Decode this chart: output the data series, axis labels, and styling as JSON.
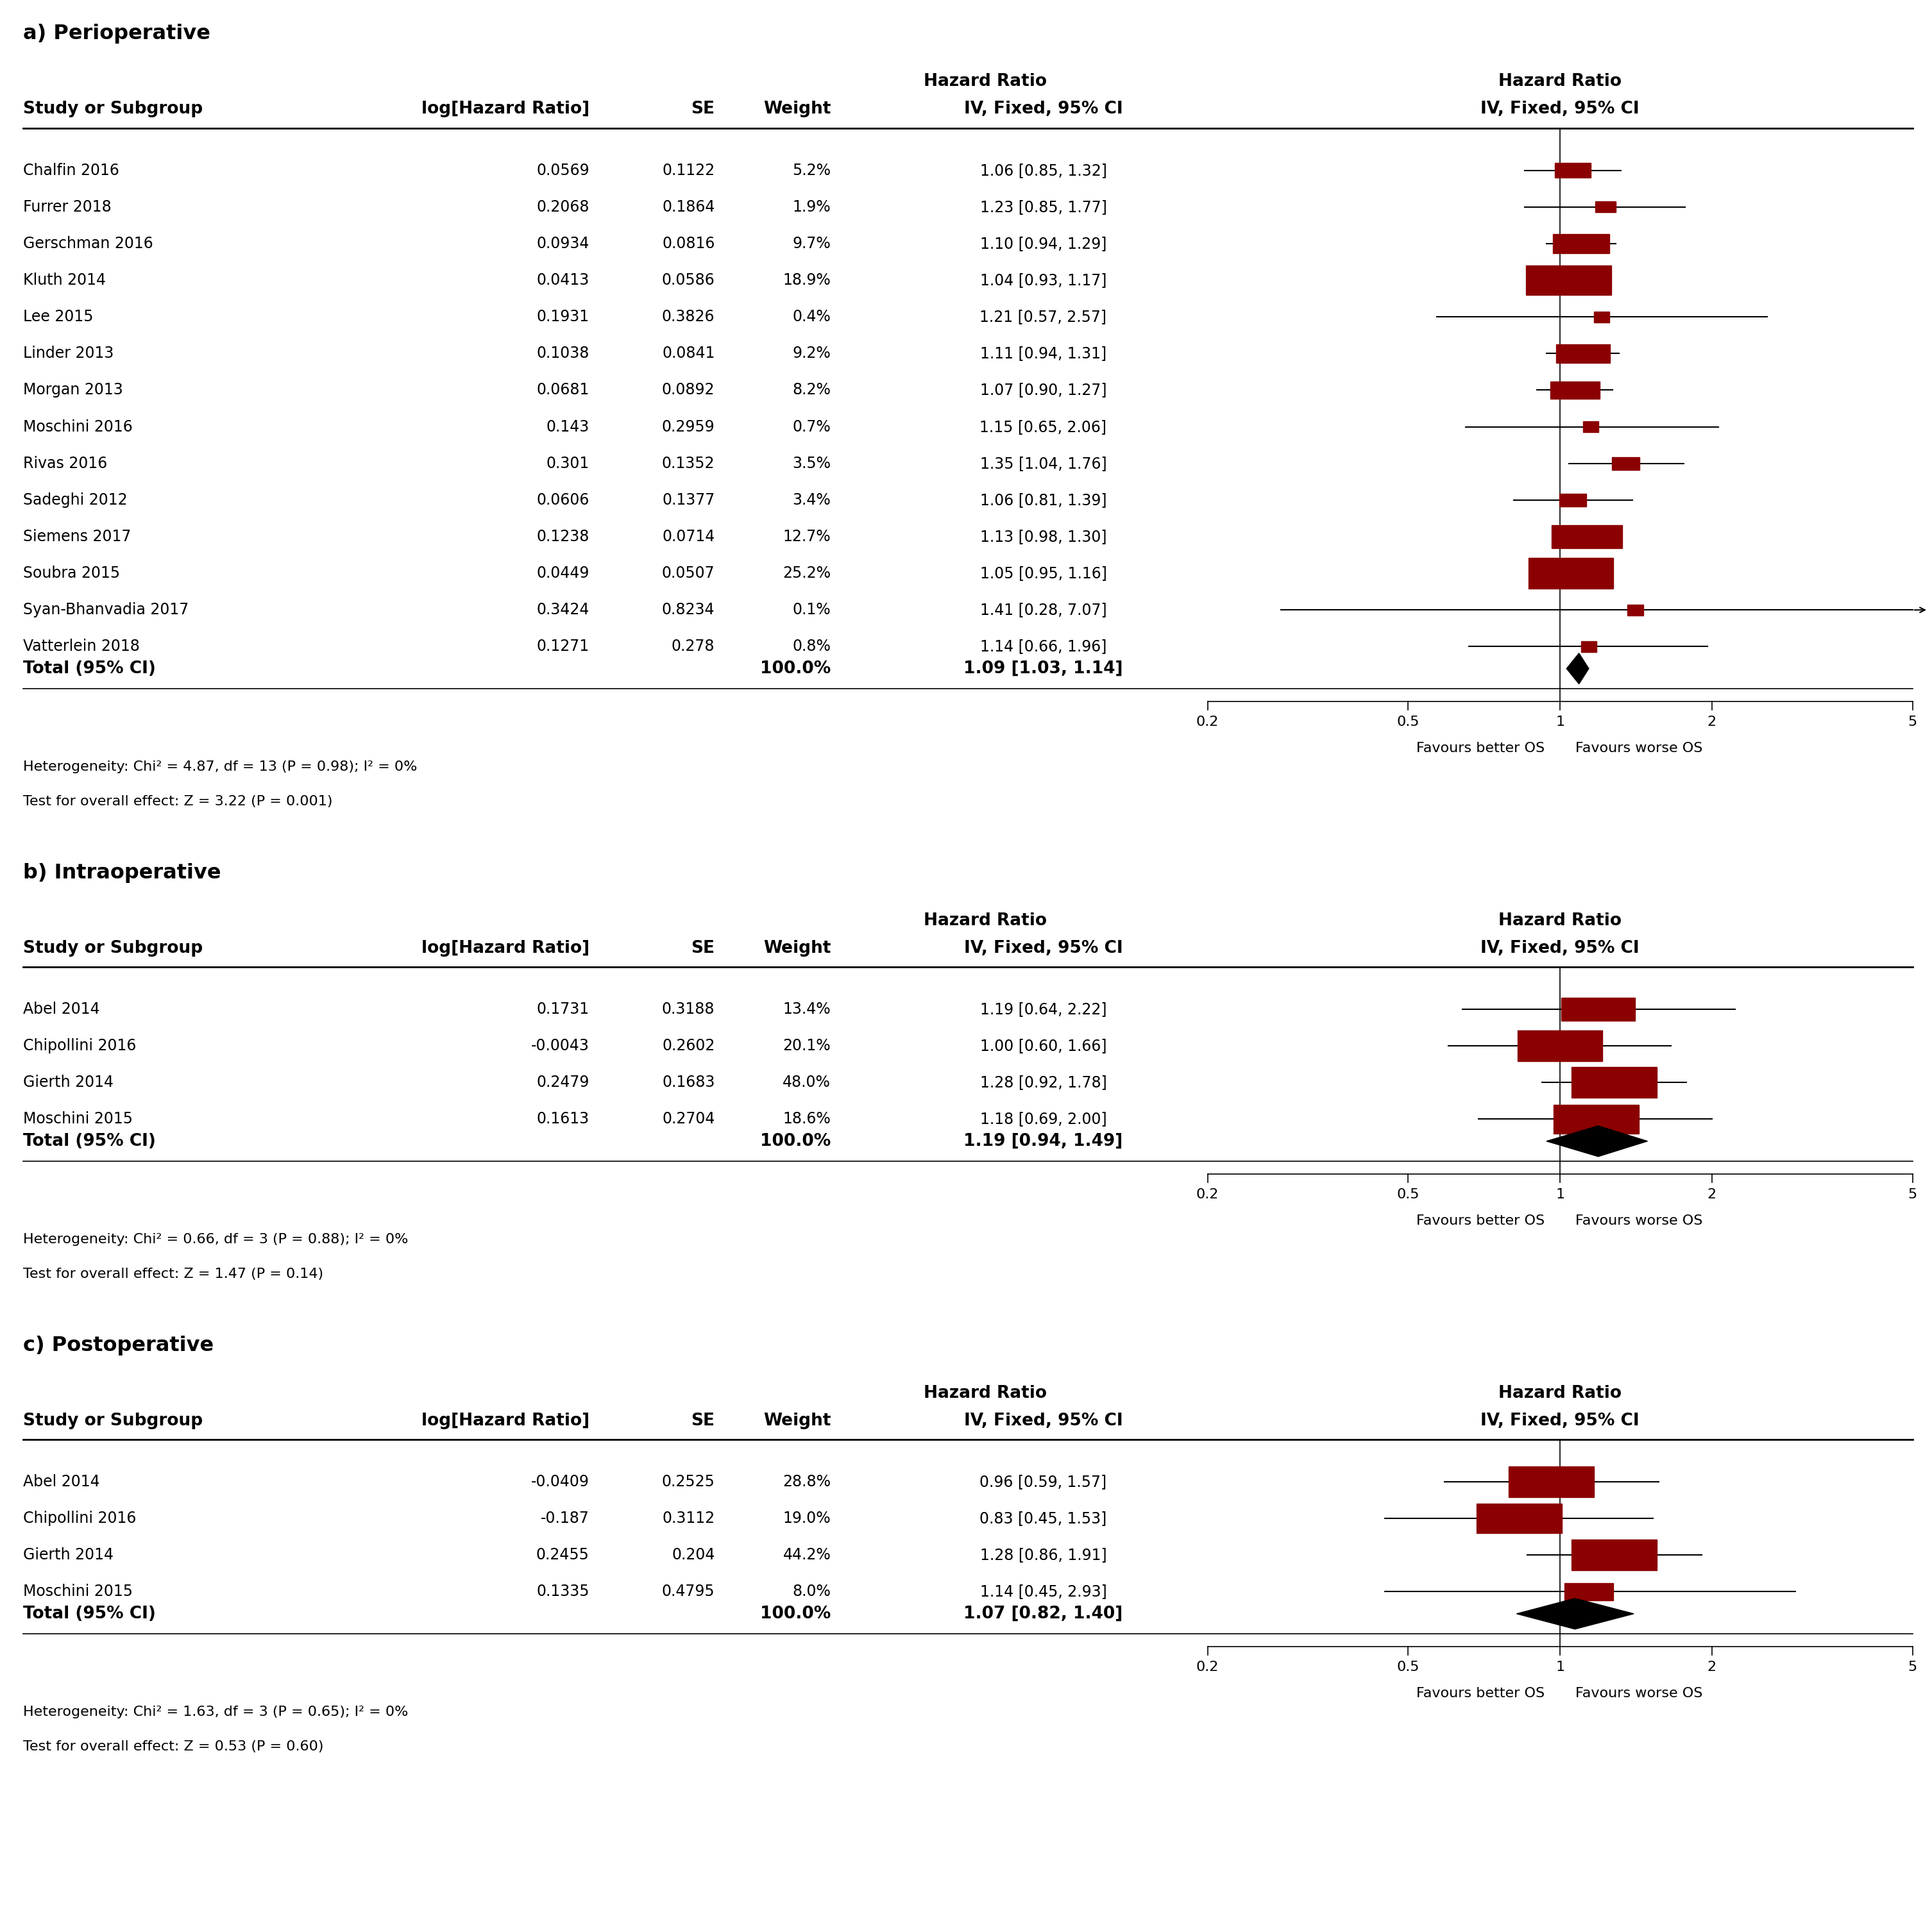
{
  "sections": [
    {
      "label": "a) Perioperative",
      "studies": [
        {
          "name": "Chalfin 2016",
          "log_hr": 0.0569,
          "se": 0.1122,
          "weight": "5.2%",
          "hr_str": "1.06 [0.85, 1.32]",
          "hr": 1.06,
          "lo": 0.85,
          "hi": 1.32
        },
        {
          "name": "Furrer 2018",
          "log_hr": 0.2068,
          "se": 0.1864,
          "weight": "1.9%",
          "hr_str": "1.23 [0.85, 1.77]",
          "hr": 1.23,
          "lo": 0.85,
          "hi": 1.77
        },
        {
          "name": "Gerschman 2016",
          "log_hr": 0.0934,
          "se": 0.0816,
          "weight": "9.7%",
          "hr_str": "1.10 [0.94, 1.29]",
          "hr": 1.1,
          "lo": 0.94,
          "hi": 1.29
        },
        {
          "name": "Kluth 2014",
          "log_hr": 0.0413,
          "se": 0.0586,
          "weight": "18.9%",
          "hr_str": "1.04 [0.93, 1.17]",
          "hr": 1.04,
          "lo": 0.93,
          "hi": 1.17
        },
        {
          "name": "Lee 2015",
          "log_hr": 0.1931,
          "se": 0.3826,
          "weight": "0.4%",
          "hr_str": "1.21 [0.57, 2.57]",
          "hr": 1.21,
          "lo": 0.57,
          "hi": 2.57
        },
        {
          "name": "Linder 2013",
          "log_hr": 0.1038,
          "se": 0.0841,
          "weight": "9.2%",
          "hr_str": "1.11 [0.94, 1.31]",
          "hr": 1.11,
          "lo": 0.94,
          "hi": 1.31
        },
        {
          "name": "Morgan 2013",
          "log_hr": 0.0681,
          "se": 0.0892,
          "weight": "8.2%",
          "hr_str": "1.07 [0.90, 1.27]",
          "hr": 1.07,
          "lo": 0.9,
          "hi": 1.27
        },
        {
          "name": "Moschini 2016",
          "log_hr": 0.143,
          "se": 0.2959,
          "weight": "0.7%",
          "hr_str": "1.15 [0.65, 2.06]",
          "hr": 1.15,
          "lo": 0.65,
          "hi": 2.06
        },
        {
          "name": "Rivas 2016",
          "log_hr": 0.301,
          "se": 0.1352,
          "weight": "3.5%",
          "hr_str": "1.35 [1.04, 1.76]",
          "hr": 1.35,
          "lo": 1.04,
          "hi": 1.76
        },
        {
          "name": "Sadeghi 2012",
          "log_hr": 0.0606,
          "se": 0.1377,
          "weight": "3.4%",
          "hr_str": "1.06 [0.81, 1.39]",
          "hr": 1.06,
          "lo": 0.81,
          "hi": 1.39
        },
        {
          "name": "Siemens 2017",
          "log_hr": 0.1238,
          "se": 0.0714,
          "weight": "12.7%",
          "hr_str": "1.13 [0.98, 1.30]",
          "hr": 1.13,
          "lo": 0.98,
          "hi": 1.3
        },
        {
          "name": "Soubra 2015",
          "log_hr": 0.0449,
          "se": 0.0507,
          "weight": "25.2%",
          "hr_str": "1.05 [0.95, 1.16]",
          "hr": 1.05,
          "lo": 0.95,
          "hi": 1.16
        },
        {
          "name": "Syan-Bhanvadia 2017",
          "log_hr": 0.3424,
          "se": 0.8234,
          "weight": "0.1%",
          "hr_str": "1.41 [0.28, 7.07]",
          "hr": 1.41,
          "lo": 0.28,
          "hi": 7.07
        },
        {
          "name": "Vatterlein 2018",
          "log_hr": 0.1271,
          "se": 0.278,
          "weight": "0.8%",
          "hr_str": "1.14 [0.66, 1.96]",
          "hr": 1.14,
          "lo": 0.66,
          "hi": 1.96
        }
      ],
      "total": {
        "weight": "100.0%",
        "hr_str": "1.09 [1.03, 1.14]",
        "hr": 1.09,
        "lo": 1.03,
        "hi": 1.14
      },
      "heterogeneity": "Heterogeneity: Chi² = 4.87, df = 13 (P = 0.98); I² = 0%",
      "overall_effect": "Test for overall effect: Z = 3.22 (P = 0.001)",
      "has_arrow": true
    },
    {
      "label": "b) Intraoperative",
      "studies": [
        {
          "name": "Abel 2014",
          "log_hr": 0.1731,
          "se": 0.3188,
          "weight": "13.4%",
          "hr_str": "1.19 [0.64, 2.22]",
          "hr": 1.19,
          "lo": 0.64,
          "hi": 2.22
        },
        {
          "name": "Chipollini 2016",
          "log_hr": -0.0043,
          "se": 0.2602,
          "weight": "20.1%",
          "hr_str": "1.00 [0.60, 1.66]",
          "hr": 1.0,
          "lo": 0.6,
          "hi": 1.66
        },
        {
          "name": "Gierth 2014",
          "log_hr": 0.2479,
          "se": 0.1683,
          "weight": "48.0%",
          "hr_str": "1.28 [0.92, 1.78]",
          "hr": 1.28,
          "lo": 0.92,
          "hi": 1.78
        },
        {
          "name": "Moschini 2015",
          "log_hr": 0.1613,
          "se": 0.2704,
          "weight": "18.6%",
          "hr_str": "1.18 [0.69, 2.00]",
          "hr": 1.18,
          "lo": 0.69,
          "hi": 2.0
        }
      ],
      "total": {
        "weight": "100.0%",
        "hr_str": "1.19 [0.94, 1.49]",
        "hr": 1.19,
        "lo": 0.94,
        "hi": 1.49
      },
      "heterogeneity": "Heterogeneity: Chi² = 0.66, df = 3 (P = 0.88); I² = 0%",
      "overall_effect": "Test for overall effect: Z = 1.47 (P = 0.14)",
      "has_arrow": false
    },
    {
      "label": "c) Postoperative",
      "studies": [
        {
          "name": "Abel 2014",
          "log_hr": -0.0409,
          "se": 0.2525,
          "weight": "28.8%",
          "hr_str": "0.96 [0.59, 1.57]",
          "hr": 0.96,
          "lo": 0.59,
          "hi": 1.57
        },
        {
          "name": "Chipollini 2016",
          "log_hr": -0.187,
          "se": 0.3112,
          "weight": "19.0%",
          "hr_str": "0.83 [0.45, 1.53]",
          "hr": 0.83,
          "lo": 0.45,
          "hi": 1.53
        },
        {
          "name": "Gierth 2014",
          "log_hr": 0.2455,
          "se": 0.204,
          "weight": "44.2%",
          "hr_str": "1.28 [0.86, 1.91]",
          "hr": 1.28,
          "lo": 0.86,
          "hi": 1.91
        },
        {
          "name": "Moschini 2015",
          "log_hr": 0.1335,
          "se": 0.4795,
          "weight": "8.0%",
          "hr_str": "1.14 [0.45, 2.93]",
          "hr": 1.14,
          "lo": 0.45,
          "hi": 2.93
        }
      ],
      "total": {
        "weight": "100.0%",
        "hr_str": "1.07 [0.82, 1.40]",
        "hr": 1.07,
        "lo": 0.82,
        "hi": 1.4
      },
      "heterogeneity": "Heterogeneity: Chi² = 1.63, df = 3 (P = 0.65); I² = 0%",
      "overall_effect": "Test for overall effect: Z = 0.53 (P = 0.60)",
      "has_arrow": false
    }
  ],
  "x_min": 0.2,
  "x_max": 5.0,
  "x_ticks": [
    0.2,
    0.5,
    1,
    2,
    5
  ],
  "x_label_left": "Favours better OS",
  "x_label_right": "Favours worse OS",
  "marker_color": "#8B0000",
  "diamond_color": "#000000",
  "line_color": "#000000",
  "text_color": "#000000",
  "bg_color": "#FFFFFF"
}
